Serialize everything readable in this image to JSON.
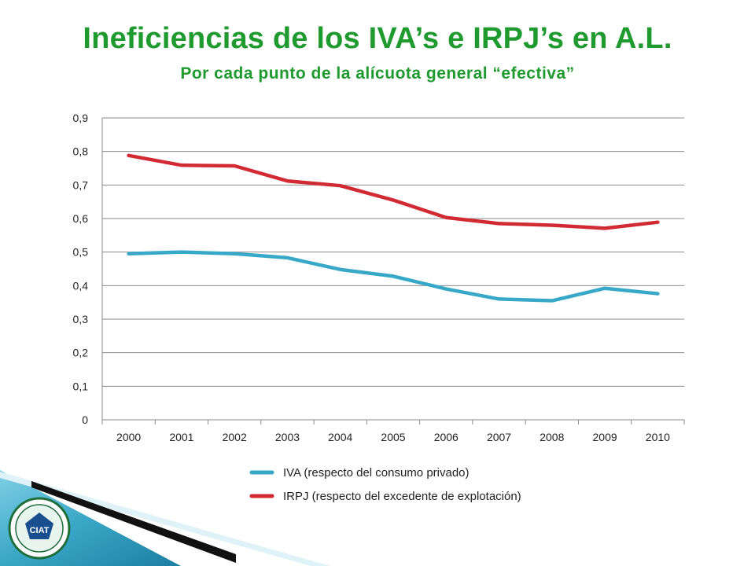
{
  "slide": {
    "title": "Ineficiencias de los IVA’s e IRPJ’s en A.L.",
    "subtitle": "Por cada punto de la alícuota general “efectiva”"
  },
  "logo": {
    "text": "CIAT"
  },
  "chart_data": {
    "type": "line",
    "title": "",
    "xlabel": "",
    "ylabel": "",
    "categories": [
      "2000",
      "2001",
      "2002",
      "2003",
      "2004",
      "2005",
      "2006",
      "2007",
      "2008",
      "2009",
      "2010"
    ],
    "ylim": [
      0,
      0.9
    ],
    "yticks": [
      "0",
      "0,1",
      "0,2",
      "0,3",
      "0,4",
      "0,5",
      "0,6",
      "0,7",
      "0,8",
      "0,9"
    ],
    "grid": true,
    "legend_position": "bottom",
    "series": [
      {
        "name": "IVA (respecto del consumo privado)",
        "color": "#38a8c8",
        "values": [
          0.495,
          0.5,
          0.495,
          0.483,
          0.448,
          0.428,
          0.39,
          0.36,
          0.355,
          0.392,
          0.376
        ]
      },
      {
        "name": "IRPJ (respecto del excedente de explotación)",
        "color": "#d22a33",
        "values": [
          0.788,
          0.759,
          0.757,
          0.712,
          0.698,
          0.655,
          0.603,
          0.585,
          0.58,
          0.571,
          0.589
        ]
      }
    ]
  }
}
